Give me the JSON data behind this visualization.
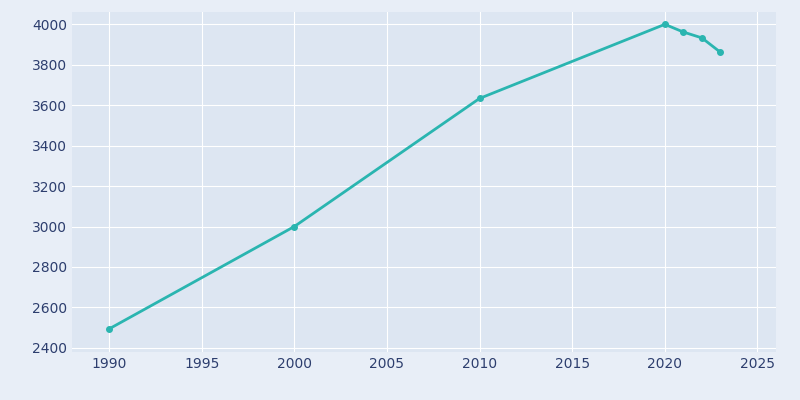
{
  "years": [
    1990,
    2000,
    2010,
    2020,
    2021,
    2022,
    2023
  ],
  "population": [
    2494,
    3000,
    3633,
    3999,
    3961,
    3932,
    3861
  ],
  "line_color": "#2ab5b0",
  "marker_color": "#2ab5b0",
  "bg_color": "#e8eef7",
  "plot_bg_color": "#dde6f2",
  "grid_color": "#ffffff",
  "tick_color": "#2d3e6e",
  "xlim": [
    1988,
    2026
  ],
  "ylim": [
    2380,
    4060
  ],
  "xticks": [
    1990,
    1995,
    2000,
    2005,
    2010,
    2015,
    2020,
    2025
  ],
  "yticks": [
    2400,
    2600,
    2800,
    3000,
    3200,
    3400,
    3600,
    3800,
    4000
  ],
  "linewidth": 2.0,
  "marker_size": 4
}
